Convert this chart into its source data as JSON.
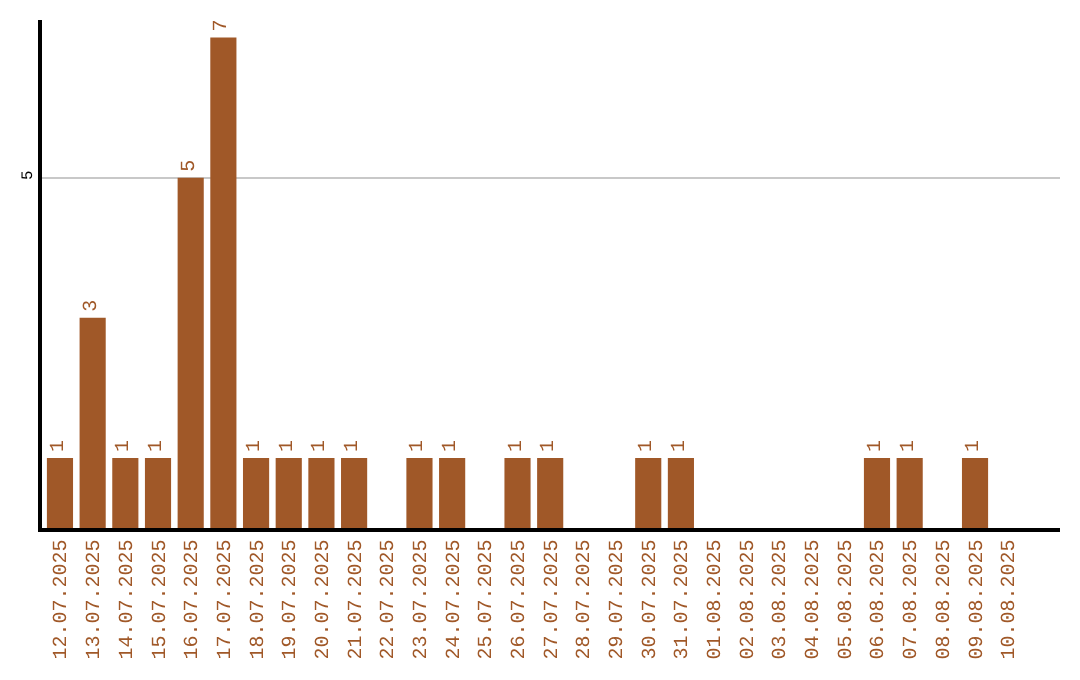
{
  "chart_data": {
    "type": "bar",
    "categories": [
      "12.07.2025",
      "13.07.2025",
      "14.07.2025",
      "15.07.2025",
      "16.07.2025",
      "17.07.2025",
      "18.07.2025",
      "19.07.2025",
      "20.07.2025",
      "21.07.2025",
      "22.07.2025",
      "23.07.2025",
      "24.07.2025",
      "25.07.2025",
      "26.07.2025",
      "27.07.2025",
      "28.07.2025",
      "29.07.2025",
      "30.07.2025",
      "31.07.2025",
      "01.08.2025",
      "02.08.2025",
      "03.08.2025",
      "04.08.2025",
      "05.08.2025",
      "06.08.2025",
      "07.08.2025",
      "08.08.2025",
      "09.08.2025",
      "10.08.2025"
    ],
    "values": [
      1,
      3,
      1,
      1,
      5,
      7,
      1,
      1,
      1,
      1,
      0,
      1,
      1,
      0,
      1,
      1,
      0,
      0,
      1,
      1,
      0,
      0,
      0,
      0,
      0,
      1,
      1,
      0,
      1,
      0
    ],
    "value_labels": [
      "1",
      "3",
      "1",
      "1",
      "5",
      "7",
      "1",
      "1",
      "1",
      "1",
      null,
      "1",
      "1",
      null,
      "1",
      "1",
      null,
      null,
      "1",
      "1",
      null,
      null,
      null,
      null,
      null,
      "1",
      "1",
      null,
      "1",
      null
    ],
    "color": "#a05828",
    "ylim": [
      0,
      7.25
    ],
    "yticks": [
      5
    ],
    "grid": "y",
    "legend": false
  }
}
